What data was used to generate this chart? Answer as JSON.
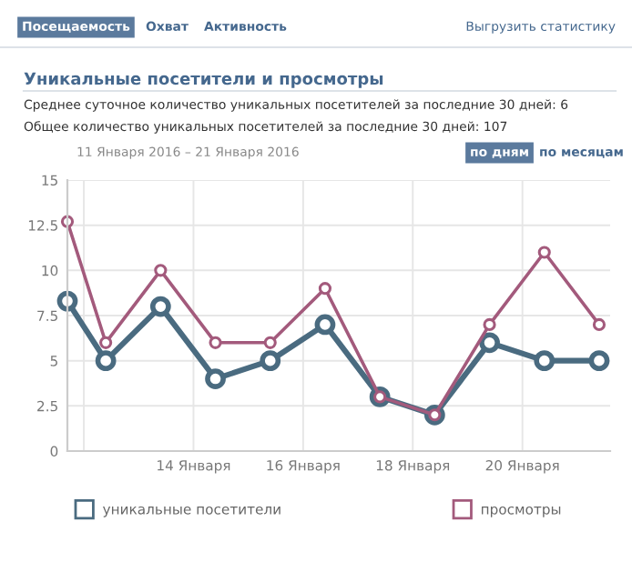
{
  "chart_data": {
    "type": "line",
    "title": "Уникальные посетители и просмотры",
    "subtitle": "11 Января 2016 – 21 Января 2016",
    "annotations": [
      "Посещаемость",
      "Охват",
      "Активность",
      "Выгрузить статистику",
      "Среднее суточное количество уникальных посетителей за последние 30 дней: 6",
      "Общее количество уникальных посетителей за последние 30 дней: 107",
      "по дням",
      "по месяцам"
    ],
    "x": [
      11.7,
      12.4,
      13.4,
      14.4,
      15.4,
      16.4,
      17.4,
      18.4,
      19.4,
      20.4,
      21.4
    ],
    "series": [
      {
        "name": "уникальные посетители",
        "color": "#4a6b80",
        "values": [
          8.3,
          5,
          8,
          4,
          5,
          7,
          3,
          2,
          6,
          5,
          5
        ]
      },
      {
        "name": "просмотры",
        "color": "#a35a7c",
        "values": [
          12.7,
          6,
          10,
          6,
          6,
          9,
          3,
          2,
          7,
          11,
          7
        ]
      }
    ],
    "xlim": [
      11.7,
      21.6
    ],
    "xticks": [
      {
        "value": 12,
        "label": null
      },
      {
        "value": 14,
        "label": "14 Января"
      },
      {
        "value": 16,
        "label": "16 Января"
      },
      {
        "value": 18,
        "label": "18 Января"
      },
      {
        "value": 20,
        "label": "20 Января"
      }
    ],
    "ylim": [
      0,
      15
    ],
    "yticks": [
      0,
      2.5,
      5,
      7.5,
      10,
      12.5,
      15
    ],
    "grid": true,
    "legend": "bottom",
    "marker": "circle",
    "line_style": "solid"
  }
}
